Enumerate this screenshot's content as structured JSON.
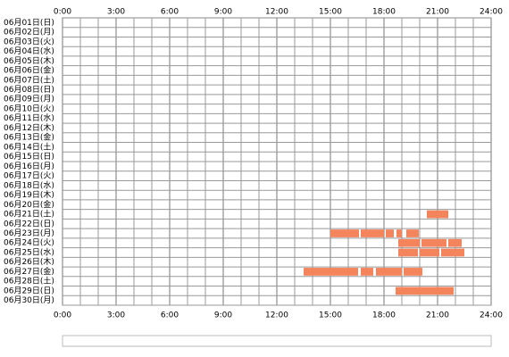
{
  "chart_data": {
    "type": "timeline",
    "color": "#f4845c",
    "xlim": [
      0,
      24
    ],
    "xticks": [
      {
        "value": 0,
        "label": "0:00"
      },
      {
        "value": 3,
        "label": "3:00"
      },
      {
        "value": 6,
        "label": "6:00"
      },
      {
        "value": 9,
        "label": "9:00"
      },
      {
        "value": 12,
        "label": "12:00"
      },
      {
        "value": 15,
        "label": "15:00"
      },
      {
        "value": 18,
        "label": "18:00"
      },
      {
        "value": 21,
        "label": "21:00"
      },
      {
        "value": 24,
        "label": "24:00"
      }
    ],
    "rows": [
      {
        "label": "06月01日(日)",
        "spans": []
      },
      {
        "label": "06月02日(月)",
        "spans": []
      },
      {
        "label": "06月03日(火)",
        "spans": []
      },
      {
        "label": "06月04日(水)",
        "spans": []
      },
      {
        "label": "06月05日(木)",
        "spans": []
      },
      {
        "label": "06月06日(金)",
        "spans": []
      },
      {
        "label": "06月07日(土)",
        "spans": []
      },
      {
        "label": "06月08日(日)",
        "spans": []
      },
      {
        "label": "06月09日(月)",
        "spans": []
      },
      {
        "label": "06月10日(火)",
        "spans": []
      },
      {
        "label": "06月11日(水)",
        "spans": []
      },
      {
        "label": "06月12日(木)",
        "spans": []
      },
      {
        "label": "06月13日(金)",
        "spans": []
      },
      {
        "label": "06月14日(土)",
        "spans": []
      },
      {
        "label": "06月15日(日)",
        "spans": []
      },
      {
        "label": "06月16日(月)",
        "spans": []
      },
      {
        "label": "06月17日(火)",
        "spans": []
      },
      {
        "label": "06月18日(水)",
        "spans": []
      },
      {
        "label": "06月19日(木)",
        "spans": []
      },
      {
        "label": "06月20日(金)",
        "spans": []
      },
      {
        "label": "06月21日(土)",
        "spans": [
          [
            20.4,
            21.6
          ]
        ]
      },
      {
        "label": "06月22日(日)",
        "spans": []
      },
      {
        "label": "06月23日(月)",
        "spans": [
          [
            15.0,
            16.6
          ],
          [
            16.7,
            18.0
          ],
          [
            18.1,
            18.55
          ],
          [
            18.7,
            19.0
          ],
          [
            19.25,
            19.95
          ]
        ]
      },
      {
        "label": "06月24日(火)",
        "spans": [
          [
            18.8,
            20.0
          ],
          [
            20.1,
            21.5
          ],
          [
            21.6,
            22.35
          ]
        ]
      },
      {
        "label": "06月25日(水)",
        "spans": [
          [
            18.8,
            19.9
          ],
          [
            20.0,
            21.1
          ],
          [
            21.2,
            22.5
          ]
        ]
      },
      {
        "label": "06月26日(木)",
        "spans": []
      },
      {
        "label": "06月27日(金)",
        "spans": [
          [
            13.5,
            16.55
          ],
          [
            16.7,
            17.4
          ],
          [
            17.55,
            19.0
          ],
          [
            19.1,
            20.15
          ]
        ]
      },
      {
        "label": "06月28日(土)",
        "spans": []
      },
      {
        "label": "06月29日(日)",
        "spans": [
          [
            18.65,
            21.9
          ]
        ]
      },
      {
        "label": "06月30日(月)",
        "spans": []
      }
    ]
  }
}
